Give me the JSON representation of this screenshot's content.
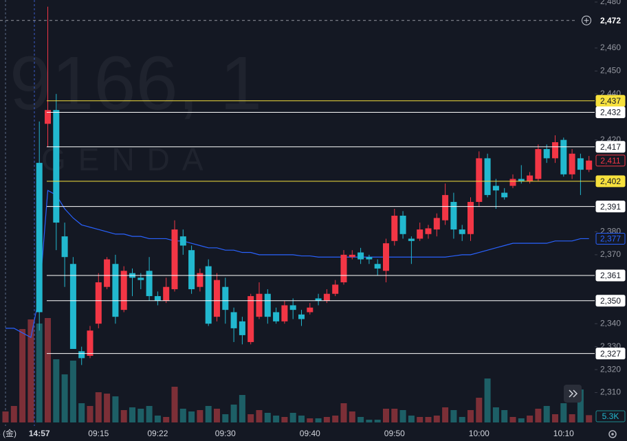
{
  "chart_data": {
    "type": "candlestick",
    "watermark": "9166, 1",
    "watermark_sub": "GENDA",
    "categories": [
      "3 (金)",
      null,
      null,
      null,
      "14:57",
      null,
      null,
      null,
      null,
      null,
      null,
      "09:15",
      null,
      null,
      null,
      null,
      null,
      null,
      "09:22",
      null,
      null,
      null,
      null,
      null,
      null,
      null,
      "09:30",
      null,
      null,
      null,
      null,
      null,
      null,
      null,
      null,
      null,
      "09:40",
      null,
      null,
      null,
      null,
      null,
      null,
      null,
      null,
      null,
      "09:50",
      null,
      null,
      null,
      null,
      null,
      null,
      null,
      null,
      null,
      "10:00",
      null,
      null,
      null,
      null,
      null,
      null,
      null,
      null,
      null,
      "10:10",
      null,
      null,
      null
    ],
    "open": [
      null,
      null,
      null,
      null,
      2410,
      2427,
      2433,
      2378,
      2366,
      2328,
      2326,
      2340,
      2356,
      2366,
      2346,
      2362,
      2360,
      2363,
      2352,
      2350,
      2355,
      2378,
      2372,
      2356,
      2365,
      2343,
      2356,
      2345,
      2341,
      2332,
      2343,
      2353,
      2345,
      2341,
      2348,
      2344,
      2345,
      2351,
      2350,
      2353,
      2358,
      2369,
      2371,
      2369,
      2366,
      2363,
      2376,
      2387,
      2377,
      2377,
      2379,
      2381,
      2385,
      2393,
      2381,
      2379,
      2393,
      2412,
      2400,
      2397,
      2400,
      2403,
      2402,
      2403,
      2416,
      2412,
      2420,
      2405,
      2412,
      2407
    ],
    "high": [
      null,
      null,
      null,
      null,
      2428,
      2478,
      2440,
      2384,
      2369,
      2330,
      2339,
      2362,
      2369,
      2370,
      2365,
      2364,
      2362,
      2369,
      2354,
      2360,
      2385,
      2381,
      2374,
      2364,
      2368,
      2362,
      2360,
      2347,
      2343,
      2353,
      2358,
      2355,
      2347,
      2350,
      2351,
      2346,
      2349,
      2353,
      2355,
      2359,
      2372,
      2372,
      2373,
      2370,
      2368,
      2377,
      2390,
      2389,
      2378,
      2384,
      2383,
      2388,
      2401,
      2397,
      2383,
      2395,
      2415,
      2414,
      2403,
      2399,
      2405,
      2409,
      2406,
      2418,
      2418,
      2422,
      2421,
      2416,
      2414,
      2413
    ],
    "low": [
      null,
      null,
      null,
      null,
      2337,
      2417,
      2372,
      2356,
      2329,
      2322,
      2325,
      2338,
      2355,
      2340,
      2345,
      2352,
      2355,
      2350,
      2348,
      2349,
      2354,
      2370,
      2353,
      2354,
      2339,
      2341,
      2340,
      2332,
      2331,
      2331,
      2342,
      2340,
      2340,
      2340,
      2342,
      2339,
      2344,
      2348,
      2349,
      2352,
      2357,
      2368,
      2366,
      2366,
      2361,
      2358,
      2374,
      2377,
      2366,
      2376,
      2377,
      2378,
      2383,
      2377,
      2376,
      2376,
      2391,
      2395,
      2390,
      2394,
      2399,
      2401,
      2401,
      2402,
      2410,
      2410,
      2404,
      2403,
      2396,
      2406
    ],
    "close": [
      null,
      null,
      null,
      null,
      2345,
      2433,
      2384,
      2369,
      2329,
      2325,
      2337,
      2358,
      2368,
      2343,
      2363,
      2360,
      2359,
      2352,
      2350,
      2356,
      2381,
      2374,
      2355,
      2362,
      2340,
      2359,
      2346,
      2338,
      2335,
      2352,
      2353,
      2343,
      2341,
      2348,
      2346,
      2342,
      2347,
      2350,
      2353,
      2357,
      2370,
      2370,
      2368,
      2368,
      2364,
      2375,
      2387,
      2379,
      2376,
      2381,
      2381.5,
      2386,
      2396,
      2381,
      2379,
      2393,
      2412,
      2396,
      2398,
      2395,
      2403,
      2402,
      2404.5,
      2416,
      2412,
      2419,
      2405,
      2414,
      2407,
      2411
    ],
    "up_color": "#f23645",
    "down_color": "#22b8cf",
    "volume": [
      8,
      12,
      68,
      75,
      72,
      76,
      46,
      35,
      45,
      14,
      12,
      22,
      21,
      19,
      9,
      11,
      10,
      12,
      5,
      4,
      26,
      10,
      8,
      9,
      12,
      10,
      6,
      13,
      20,
      6,
      9,
      7,
      5,
      4,
      7,
      5,
      3,
      3,
      4,
      5,
      14,
      8,
      4,
      2,
      2,
      10,
      10,
      9,
      5,
      4,
      4,
      5,
      11,
      9,
      4,
      9,
      18,
      32,
      11,
      9,
      4,
      3,
      5,
      10,
      12,
      6,
      14,
      6,
      24,
      5.3
    ],
    "volume_lim": [
      0,
      80
    ],
    "volume_last_label": "5.3K",
    "ma": [
      2338,
      2338,
      2336,
      2334,
      2352,
      2398,
      2396,
      2390,
      2386,
      2383,
      2382,
      2381,
      2380,
      2379,
      2379,
      2378,
      2378,
      2377,
      2377,
      2377,
      2376,
      2376,
      2375,
      2374,
      2373,
      2373,
      2372,
      2372,
      2371,
      2371,
      2370,
      2370,
      2370,
      2370,
      2370,
      2369.5,
      2369.5,
      2369,
      2369,
      2369,
      2369,
      2369,
      2369,
      2369,
      2369,
      2369,
      2369,
      2369,
      2369,
      2369,
      2369,
      2369,
      2369,
      2369.5,
      2370,
      2370,
      2371,
      2372,
      2373,
      2374,
      2375,
      2375,
      2375,
      2375,
      2375,
      2376,
      2376,
      2376,
      2377,
      2377
    ],
    "ma_color": "#2962ff",
    "ma_label": {
      "value": 2377,
      "label": "2,377"
    },
    "last_label": {
      "value": 2411,
      "label": "2,411"
    },
    "crosshair": {
      "value": 2472,
      "label": "2,472"
    },
    "levels": [
      {
        "value": 2437,
        "label": "2,437",
        "color": "#f7e13d"
      },
      {
        "value": 2432,
        "label": "2,432",
        "color": "#ffffff"
      },
      {
        "value": 2417,
        "label": "2,417",
        "color": "#ffffff"
      },
      {
        "value": 2402,
        "label": "2,402",
        "color": "#f7e13d"
      },
      {
        "value": 2391,
        "label": "2,391",
        "color": "#ffffff"
      },
      {
        "value": 2361,
        "label": "2,361",
        "color": "#ffffff"
      },
      {
        "value": 2350,
        "label": "2,350",
        "color": "#ffffff"
      },
      {
        "value": 2327,
        "label": "2,327",
        "color": "#ffffff"
      }
    ],
    "ylim": [
      2297,
      2480
    ],
    "yticks": [
      {
        "value": 2480,
        "label": "2,480"
      },
      {
        "value": 2460,
        "label": "2,460"
      },
      {
        "value": 2450,
        "label": "2,450"
      },
      {
        "value": 2440,
        "label": "2,440"
      },
      {
        "value": 2420,
        "label": "2,420"
      },
      {
        "value": 2380,
        "label": "2,380"
      },
      {
        "value": 2370,
        "label": "2,370"
      },
      {
        "value": 2340,
        "label": "2,340"
      },
      {
        "value": 2330,
        "label": "2,330"
      },
      {
        "value": 2320,
        "label": "2,320"
      },
      {
        "value": 2310,
        "label": "2,310"
      }
    ]
  }
}
